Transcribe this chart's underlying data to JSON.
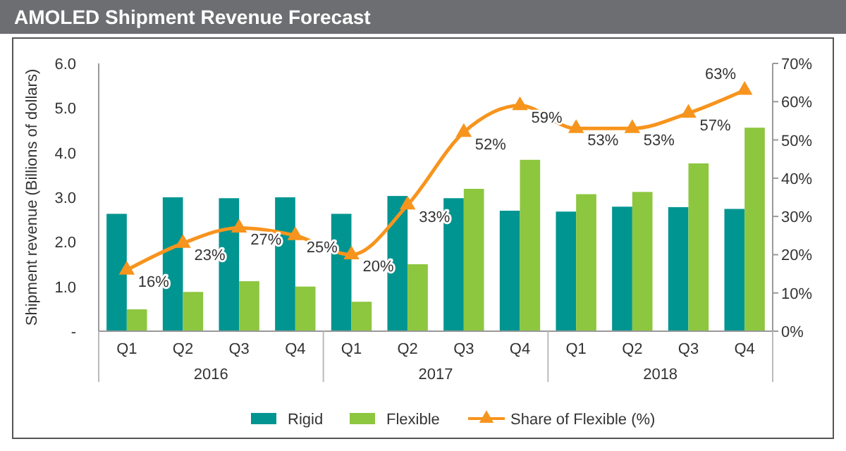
{
  "chart_data": {
    "type": "bar",
    "title": "AMOLED Shipment Revenue Forecast",
    "ylabel": "Shipment revenue  (Billions of dollars)",
    "categories": [
      "Q1",
      "Q2",
      "Q3",
      "Q4",
      "Q1",
      "Q2",
      "Q3",
      "Q4",
      "Q1",
      "Q2",
      "Q3",
      "Q4"
    ],
    "annotations": [
      "2016",
      "2017",
      "2018"
    ],
    "series": [
      {
        "name": "Rigid",
        "color": "#009591",
        "values": [
          2.63,
          3.0,
          2.98,
          3.0,
          2.63,
          3.03,
          2.98,
          2.7,
          2.68,
          2.79,
          2.78,
          2.74
        ]
      },
      {
        "name": "Flexible",
        "color": "#8dc63f",
        "values": [
          0.49,
          0.88,
          1.12,
          1.0,
          0.66,
          1.5,
          3.19,
          3.84,
          3.07,
          3.12,
          3.76,
          4.56
        ]
      },
      {
        "name": "Share of Flexible (%)",
        "type": "line",
        "axis": "y2",
        "color": "#f7941d",
        "marker": "triangle",
        "data_labels": true,
        "value_labels": [
          "16%",
          "23%",
          "27%",
          "25%",
          "20%",
          "33%",
          "52%",
          "59%",
          "53%",
          "53%",
          "57%",
          "63%"
        ],
        "values": [
          16,
          23,
          27,
          25,
          20,
          33,
          52,
          59,
          53,
          53,
          57,
          63
        ]
      }
    ],
    "ylim": [
      0,
      6
    ],
    "yticks": [
      {
        "value": 0,
        "label": "-"
      },
      {
        "value": 1,
        "label": "1.0"
      },
      {
        "value": 2,
        "label": "2.0"
      },
      {
        "value": 3,
        "label": "3.0"
      },
      {
        "value": 4,
        "label": "4.0"
      },
      {
        "value": 5,
        "label": "5.0"
      },
      {
        "value": 6,
        "label": "6.0"
      }
    ],
    "y2lim": [
      0,
      70
    ],
    "y2ticks": [
      {
        "value": 0,
        "label": "0%"
      },
      {
        "value": 10,
        "label": "10%"
      },
      {
        "value": 20,
        "label": "20%"
      },
      {
        "value": 30,
        "label": "30%"
      },
      {
        "value": 40,
        "label": "40%"
      },
      {
        "value": 50,
        "label": "50%"
      },
      {
        "value": 60,
        "label": "60%"
      },
      {
        "value": 70,
        "label": "70%"
      }
    ],
    "grid": false,
    "legend": "bottom"
  }
}
